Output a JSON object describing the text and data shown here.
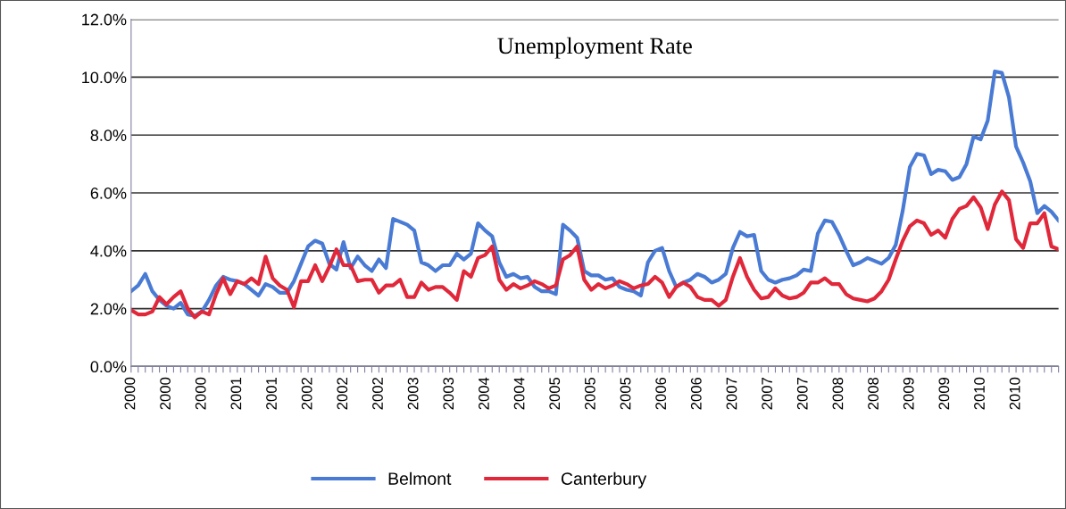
{
  "chart_data": {
    "type": "line",
    "title": "Unemployment Rate",
    "categories": [
      "2000",
      null,
      null,
      null,
      null,
      "2000",
      null,
      null,
      null,
      null,
      "2000",
      null,
      null,
      null,
      null,
      "2001",
      null,
      null,
      null,
      null,
      "2001",
      null,
      null,
      null,
      null,
      "2002",
      null,
      null,
      null,
      null,
      "2002",
      null,
      null,
      null,
      null,
      "2002",
      null,
      null,
      null,
      null,
      "2003",
      null,
      null,
      null,
      null,
      "2003",
      null,
      null,
      null,
      null,
      "2004",
      null,
      null,
      null,
      null,
      "2004",
      null,
      null,
      null,
      null,
      "2005",
      null,
      null,
      null,
      null,
      "2005",
      null,
      null,
      null,
      null,
      "2005",
      null,
      null,
      null,
      null,
      "2006",
      null,
      null,
      null,
      null,
      "2006",
      null,
      null,
      null,
      null,
      "2007",
      null,
      null,
      null,
      null,
      "2007",
      null,
      null,
      null,
      null,
      "2007",
      null,
      null,
      null,
      null,
      "2008",
      null,
      null,
      null,
      null,
      "2008",
      null,
      null,
      null,
      null,
      "2009",
      null,
      null,
      null,
      null,
      "2009",
      null,
      null,
      null,
      null,
      "2010",
      null,
      null,
      null,
      null,
      "2010",
      null,
      null,
      null,
      null,
      null,
      null
    ],
    "series": [
      {
        "name": "Belmont",
        "color": "#4a7bd4",
        "values": [
          2.6,
          2.8,
          3.2,
          2.6,
          2.3,
          2.1,
          2.0,
          2.2,
          1.8,
          1.75,
          1.9,
          2.3,
          2.8,
          3.1,
          3.0,
          2.95,
          2.85,
          2.65,
          2.45,
          2.85,
          2.75,
          2.55,
          2.55,
          2.95,
          3.55,
          4.15,
          4.35,
          4.25,
          3.55,
          3.35,
          4.3,
          3.4,
          3.8,
          3.5,
          3.3,
          3.7,
          3.4,
          5.1,
          5.0,
          4.9,
          4.7,
          3.6,
          3.5,
          3.3,
          3.5,
          3.5,
          3.9,
          3.7,
          3.9,
          4.95,
          4.7,
          4.5,
          3.6,
          3.1,
          3.2,
          3.05,
          3.1,
          2.75,
          2.6,
          2.6,
          2.5,
          4.9,
          4.7,
          4.45,
          3.3,
          3.15,
          3.15,
          3.0,
          3.05,
          2.75,
          2.65,
          2.6,
          2.45,
          3.6,
          4.0,
          4.1,
          3.3,
          2.75,
          2.9,
          3.0,
          3.2,
          3.1,
          2.9,
          3.0,
          3.2,
          4.1,
          4.65,
          4.5,
          4.55,
          3.3,
          3.0,
          2.9,
          3.0,
          3.05,
          3.15,
          3.35,
          3.3,
          4.6,
          5.05,
          5.0,
          4.55,
          4.0,
          3.5,
          3.6,
          3.75,
          3.65,
          3.55,
          3.75,
          4.2,
          5.4,
          6.9,
          7.35,
          7.3,
          6.65,
          6.8,
          6.75,
          6.45,
          6.55,
          7.0,
          7.95,
          7.85,
          8.5,
          10.2,
          10.15,
          9.3,
          7.6,
          7.05,
          6.4,
          5.3,
          5.55,
          5.35,
          5.05
        ]
      },
      {
        "name": "Canterbury",
        "color": "#e0283a",
        "values": [
          1.95,
          1.8,
          1.8,
          1.9,
          2.4,
          2.15,
          2.4,
          2.6,
          2.0,
          1.7,
          1.9,
          1.8,
          2.5,
          3.05,
          2.5,
          2.95,
          2.85,
          3.05,
          2.85,
          3.8,
          3.05,
          2.8,
          2.65,
          2.05,
          2.95,
          2.95,
          3.5,
          2.95,
          3.45,
          4.05,
          3.5,
          3.5,
          2.95,
          3.0,
          3.0,
          2.55,
          2.8,
          2.8,
          3.0,
          2.4,
          2.4,
          2.9,
          2.65,
          2.75,
          2.75,
          2.55,
          2.3,
          3.3,
          3.1,
          3.75,
          3.85,
          4.15,
          3.0,
          2.65,
          2.85,
          2.7,
          2.8,
          2.95,
          2.85,
          2.7,
          2.8,
          3.7,
          3.85,
          4.15,
          3.0,
          2.65,
          2.85,
          2.7,
          2.8,
          2.95,
          2.85,
          2.7,
          2.8,
          2.85,
          3.1,
          2.9,
          2.4,
          2.75,
          2.9,
          2.75,
          2.4,
          2.3,
          2.3,
          2.1,
          2.3,
          3.1,
          3.75,
          3.1,
          2.65,
          2.35,
          2.4,
          2.7,
          2.45,
          2.35,
          2.4,
          2.55,
          2.9,
          2.9,
          3.05,
          2.85,
          2.85,
          2.5,
          2.35,
          2.3,
          2.25,
          2.35,
          2.6,
          3.0,
          3.7,
          4.35,
          4.85,
          5.05,
          4.95,
          4.55,
          4.7,
          4.45,
          5.1,
          5.45,
          5.55,
          5.85,
          5.5,
          4.75,
          5.6,
          6.05,
          5.75,
          4.4,
          4.1,
          4.95,
          4.95,
          5.3,
          4.15,
          4.05
        ]
      }
    ],
    "ylim": [
      0,
      12
    ],
    "yticks": [
      {
        "value": 0,
        "label": "0.0%"
      },
      {
        "value": 2,
        "label": "2.0%"
      },
      {
        "value": 4,
        "label": "4.0%"
      },
      {
        "value": 6,
        "label": "6.0%"
      },
      {
        "value": 8,
        "label": "8.0%"
      },
      {
        "value": 10,
        "label": "10.0%"
      },
      {
        "value": 12,
        "label": "12.0%"
      }
    ],
    "grid": "y",
    "legend": "bottom",
    "marker": "none",
    "line_style": "solid"
  }
}
